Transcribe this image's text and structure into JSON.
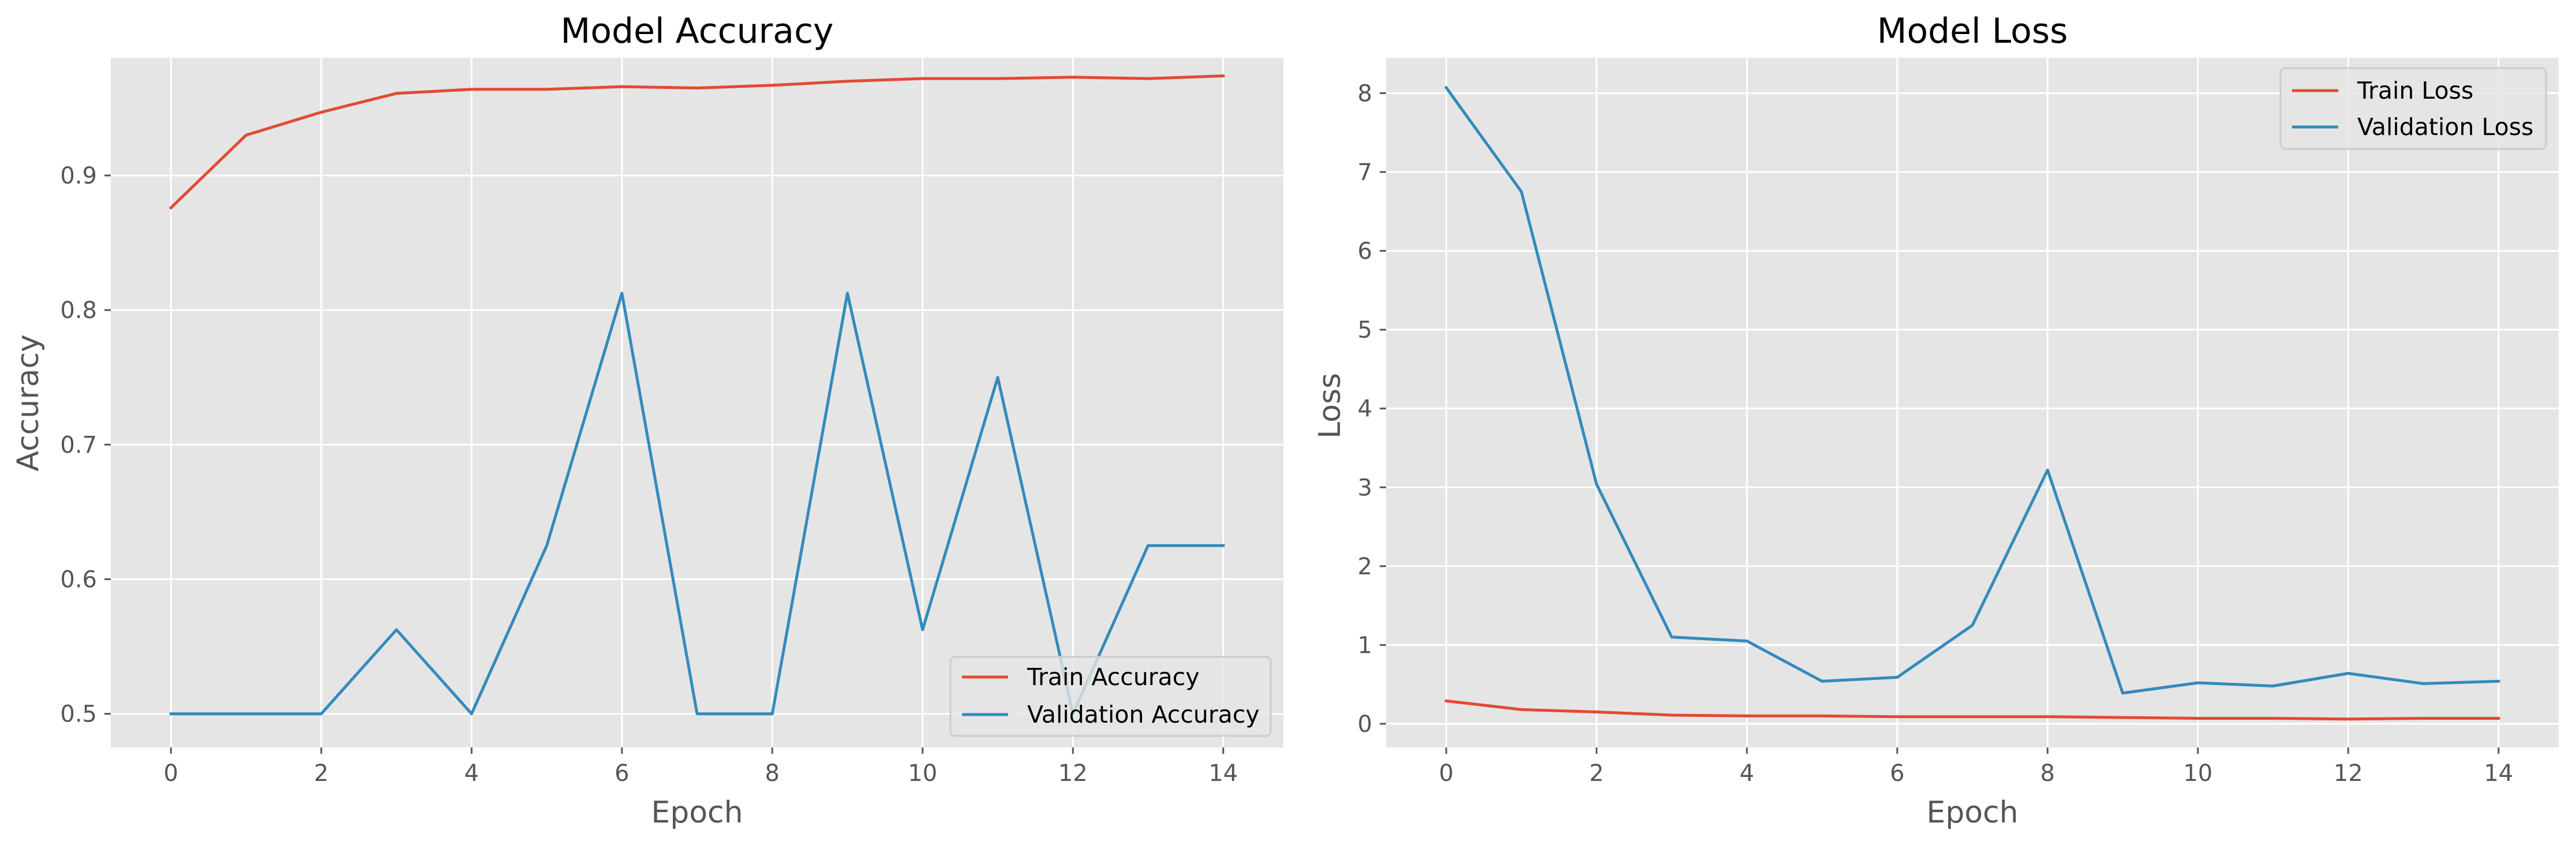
{
  "colors": {
    "train": "#E24A33",
    "validation": "#348ABD",
    "plot_bg": "#E5E5E5",
    "grid": "#FFFFFF"
  },
  "chart_data": [
    {
      "type": "line",
      "title": "Model Accuracy",
      "xlabel": "Epoch",
      "ylabel": "Accuracy",
      "xlim": [
        -0.8,
        14.8
      ],
      "ylim": [
        0.475,
        0.9875
      ],
      "xticks": [
        0,
        2,
        4,
        6,
        8,
        10,
        12,
        14
      ],
      "yticks": [
        0.5,
        0.6,
        0.7,
        0.8,
        0.9
      ],
      "ytick_labels": [
        "0.5",
        "0.6",
        "0.7",
        "0.8",
        "0.9"
      ],
      "grid": true,
      "legend_position": "lower-right",
      "x": [
        0,
        1,
        2,
        3,
        4,
        5,
        6,
        7,
        8,
        9,
        10,
        11,
        12,
        13,
        14
      ],
      "series": [
        {
          "name": "Train Accuracy",
          "color": "#E24A33",
          "values": [
            0.876,
            0.93,
            0.947,
            0.961,
            0.964,
            0.964,
            0.966,
            0.965,
            0.967,
            0.97,
            0.972,
            0.972,
            0.973,
            0.972,
            0.974
          ]
        },
        {
          "name": "Validation Accuracy",
          "color": "#348ABD",
          "values": [
            0.5,
            0.5,
            0.5,
            0.5625,
            0.5,
            0.625,
            0.8125,
            0.5,
            0.5,
            0.8125,
            0.5625,
            0.75,
            0.5,
            0.625,
            0.625
          ]
        }
      ]
    },
    {
      "type": "line",
      "title": "Model Loss",
      "xlabel": "Epoch",
      "ylabel": "Loss",
      "xlim": [
        -0.8,
        14.8
      ],
      "ylim": [
        -0.3,
        8.45
      ],
      "xticks": [
        0,
        2,
        4,
        6,
        8,
        10,
        12,
        14
      ],
      "yticks": [
        0,
        1,
        2,
        3,
        4,
        5,
        6,
        7,
        8
      ],
      "ytick_labels": [
        "0",
        "1",
        "2",
        "3",
        "4",
        "5",
        "6",
        "7",
        "8"
      ],
      "grid": true,
      "legend_position": "upper-right",
      "x": [
        0,
        1,
        2,
        3,
        4,
        5,
        6,
        7,
        8,
        9,
        10,
        11,
        12,
        13,
        14
      ],
      "series": [
        {
          "name": "Train Loss",
          "color": "#E24A33",
          "values": [
            0.29,
            0.18,
            0.15,
            0.11,
            0.1,
            0.1,
            0.09,
            0.09,
            0.09,
            0.08,
            0.07,
            0.07,
            0.06,
            0.07,
            0.07
          ]
        },
        {
          "name": "Validation Loss",
          "color": "#348ABD",
          "values": [
            8.07,
            6.75,
            3.04,
            1.1,
            1.05,
            0.54,
            0.59,
            1.25,
            3.22,
            0.39,
            0.52,
            0.48,
            0.64,
            0.51,
            0.54
          ]
        }
      ]
    }
  ]
}
